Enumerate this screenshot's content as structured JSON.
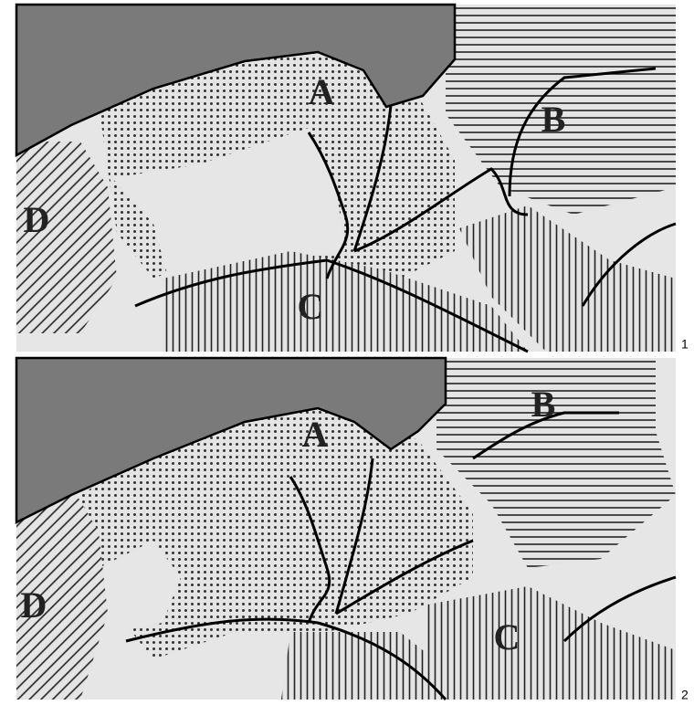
{
  "maps": [
    {
      "number": "1",
      "labels": [
        "A",
        "B",
        "C",
        "D"
      ]
    },
    {
      "number": "2",
      "labels": [
        "A",
        "B",
        "C",
        "D"
      ]
    }
  ]
}
